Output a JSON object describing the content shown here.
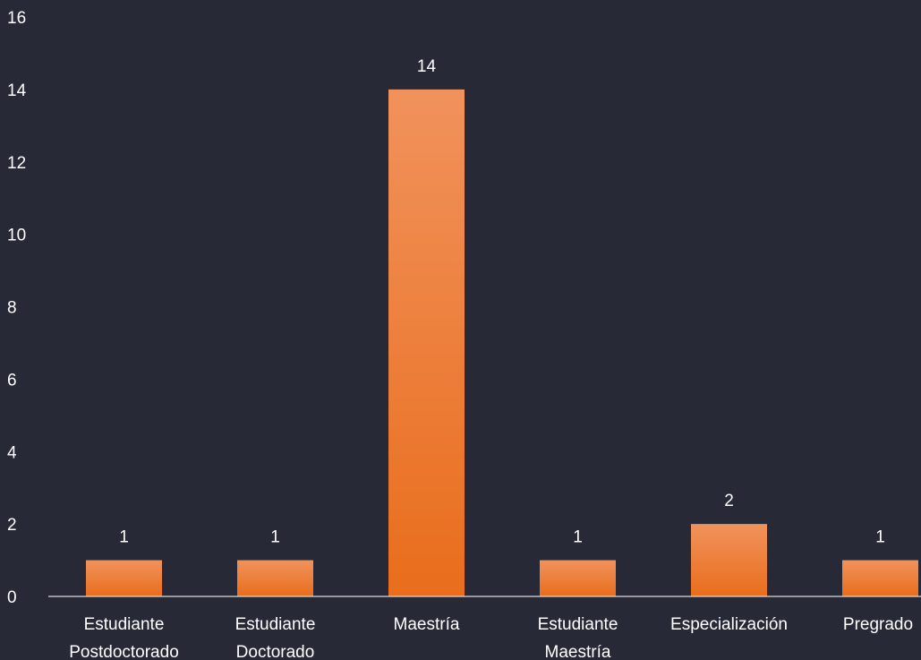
{
  "chart_data": {
    "type": "bar",
    "title": "",
    "xlabel": "",
    "ylabel": "",
    "categories": [
      [
        "Estudiante",
        "Postdoctorado"
      ],
      [
        "Estudiante",
        "Doctorado"
      ],
      [
        "Maestría"
      ],
      [
        "Estudiante",
        "Maestría"
      ],
      [
        "Especialización"
      ],
      [
        "Pregrado"
      ]
    ],
    "values": [
      1,
      1,
      14,
      1,
      2,
      1
    ],
    "ylim": [
      0,
      16
    ],
    "yticks": [
      0,
      2,
      4,
      6,
      8,
      10,
      12,
      14,
      16
    ],
    "data_labels": true,
    "grid": false,
    "legend": "none",
    "colors": {
      "background": "#282936",
      "bar_top": "#f1925c",
      "bar_bottom": "#e96d1c",
      "text": "#ffffff",
      "axis": "#d9d9d9"
    }
  }
}
